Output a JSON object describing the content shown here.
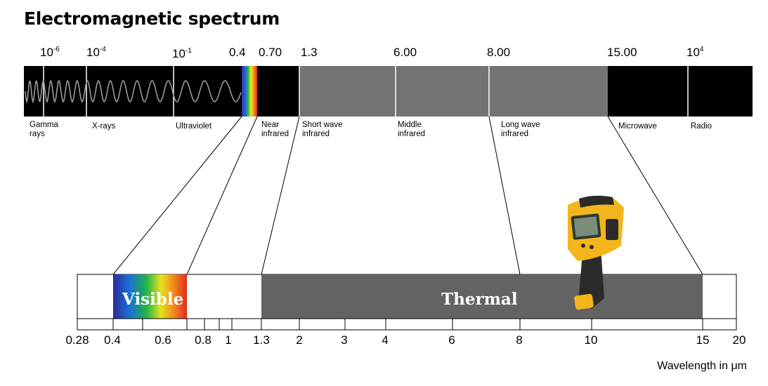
{
  "title": "Electromagnetic spectrum",
  "spectrum_ticks": [
    {
      "label": "10",
      "sup": "-6"
    },
    {
      "label": "10",
      "sup": "-4"
    },
    {
      "label": "10",
      "sup": "-1"
    },
    {
      "label": "0.4",
      "sup": ""
    },
    {
      "label": "0.70",
      "sup": ""
    },
    {
      "label": "1.3",
      "sup": ""
    },
    {
      "label": "6.00",
      "sup": ""
    },
    {
      "label": "8.00",
      "sup": ""
    },
    {
      "label": "15.00",
      "sup": ""
    },
    {
      "label": "10",
      "sup": "4"
    }
  ],
  "bands": [
    {
      "name": "Gamma rays"
    },
    {
      "name": "X-rays"
    },
    {
      "name": "Ultraviolet"
    },
    {
      "name": "Near infrared"
    },
    {
      "name": "Short wave infrared"
    },
    {
      "name": "Middle infrared"
    },
    {
      "name": "Long wave infrared"
    },
    {
      "name": "Microwave"
    },
    {
      "name": "Radio"
    }
  ],
  "regions": {
    "visible": "Visible",
    "thermal": "Thermal"
  },
  "scale_ticks": [
    "0.28",
    "0.4",
    "0.6",
    "0.8",
    "1",
    "1.3",
    "2",
    "3",
    "4",
    "6",
    "8",
    "10",
    "15",
    "20"
  ],
  "unit_label": "Wavelength in μm",
  "colors": {
    "spectrum_black": "#000000",
    "spectrum_gray": "#737373",
    "thermal_gray": "#636363",
    "wave": "#9a9a9a",
    "camera_yellow": "#f3b51b",
    "camera_body": "#2b2b2b"
  },
  "icons": [
    "thermal-camera-icon"
  ]
}
